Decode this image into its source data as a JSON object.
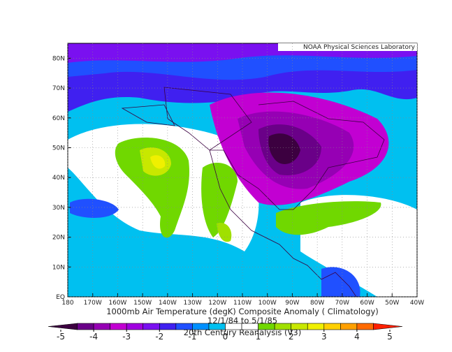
{
  "header": {
    "credit": "NOAA Physical Sciences Laboratory"
  },
  "map": {
    "lat_labels": [
      "80N",
      "70N",
      "60N",
      "50N",
      "40N",
      "30N",
      "20N",
      "10N",
      "EQ"
    ],
    "lon_labels": [
      "180",
      "170W",
      "160W",
      "150W",
      "140W",
      "130W",
      "120W",
      "110W",
      "100W",
      "90W",
      "80W",
      "70W",
      "60W",
      "50W",
      "40W"
    ]
  },
  "caption": {
    "line1": "1000mb Air Temperature (degK) Composite Anomaly ( Climatology)",
    "line2": "12/1/84  to 5/1/85",
    "line3": "20th Century Reanalysis (V3)"
  },
  "colorbar": {
    "ticks": [
      -5,
      -4,
      -3,
      -2,
      -1,
      0,
      1,
      2,
      3,
      4,
      5
    ],
    "colors": [
      "#3c0040",
      "#6a0088",
      "#9600b4",
      "#c200d2",
      "#a000e0",
      "#7a10f0",
      "#4020f0",
      "#2050ff",
      "#0090ff",
      "#00c0f0",
      "#ffffff",
      "#ffffff",
      "#70d800",
      "#a0e000",
      "#c8e800",
      "#f0f000",
      "#ffd000",
      "#ffa000",
      "#ff6a00",
      "#ff2000"
    ]
  }
}
